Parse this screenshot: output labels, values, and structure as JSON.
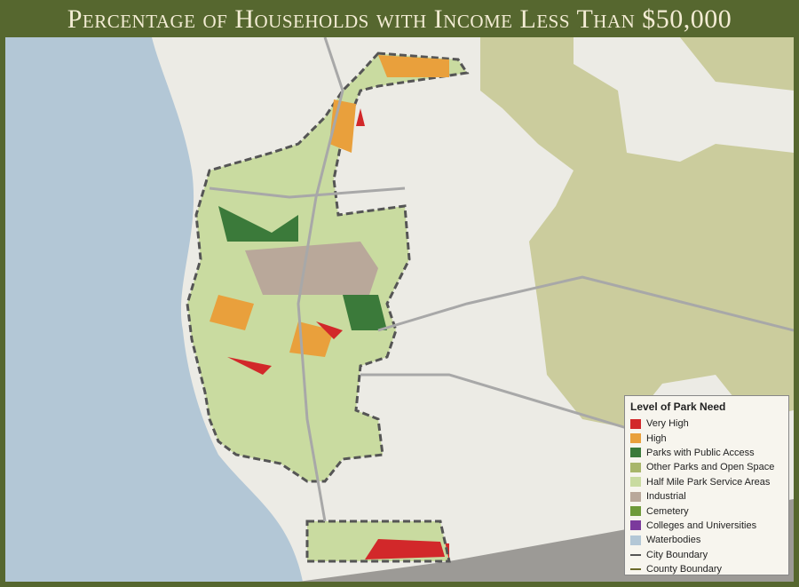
{
  "header": {
    "title": "Percentage of Households with Income Less Than $50,000"
  },
  "legend": {
    "title": "Level of Park Need",
    "items": [
      {
        "label": "Very High",
        "color": "#d2282a"
      },
      {
        "label": "High",
        "color": "#e9a03c"
      },
      {
        "label": "Parks with Public Access",
        "color": "#3b7a3a"
      },
      {
        "label": "Other Parks and Open Space",
        "color": "#a8b66a"
      },
      {
        "label": "Half Mile Park Service Areas",
        "color": "#c9dba0"
      },
      {
        "label": "Industrial",
        "color": "#b9a89a"
      },
      {
        "label": "Cemetery",
        "color": "#6e9a3a"
      },
      {
        "label": "Colleges and Universities",
        "color": "#7b3a9c"
      },
      {
        "label": "Waterbodies",
        "color": "#b3c7d6"
      },
      {
        "label": "City  Boundary",
        "color": "#555555",
        "line": true
      },
      {
        "label": "County Boundary",
        "color": "#6b6a2a",
        "line": true
      }
    ]
  }
}
